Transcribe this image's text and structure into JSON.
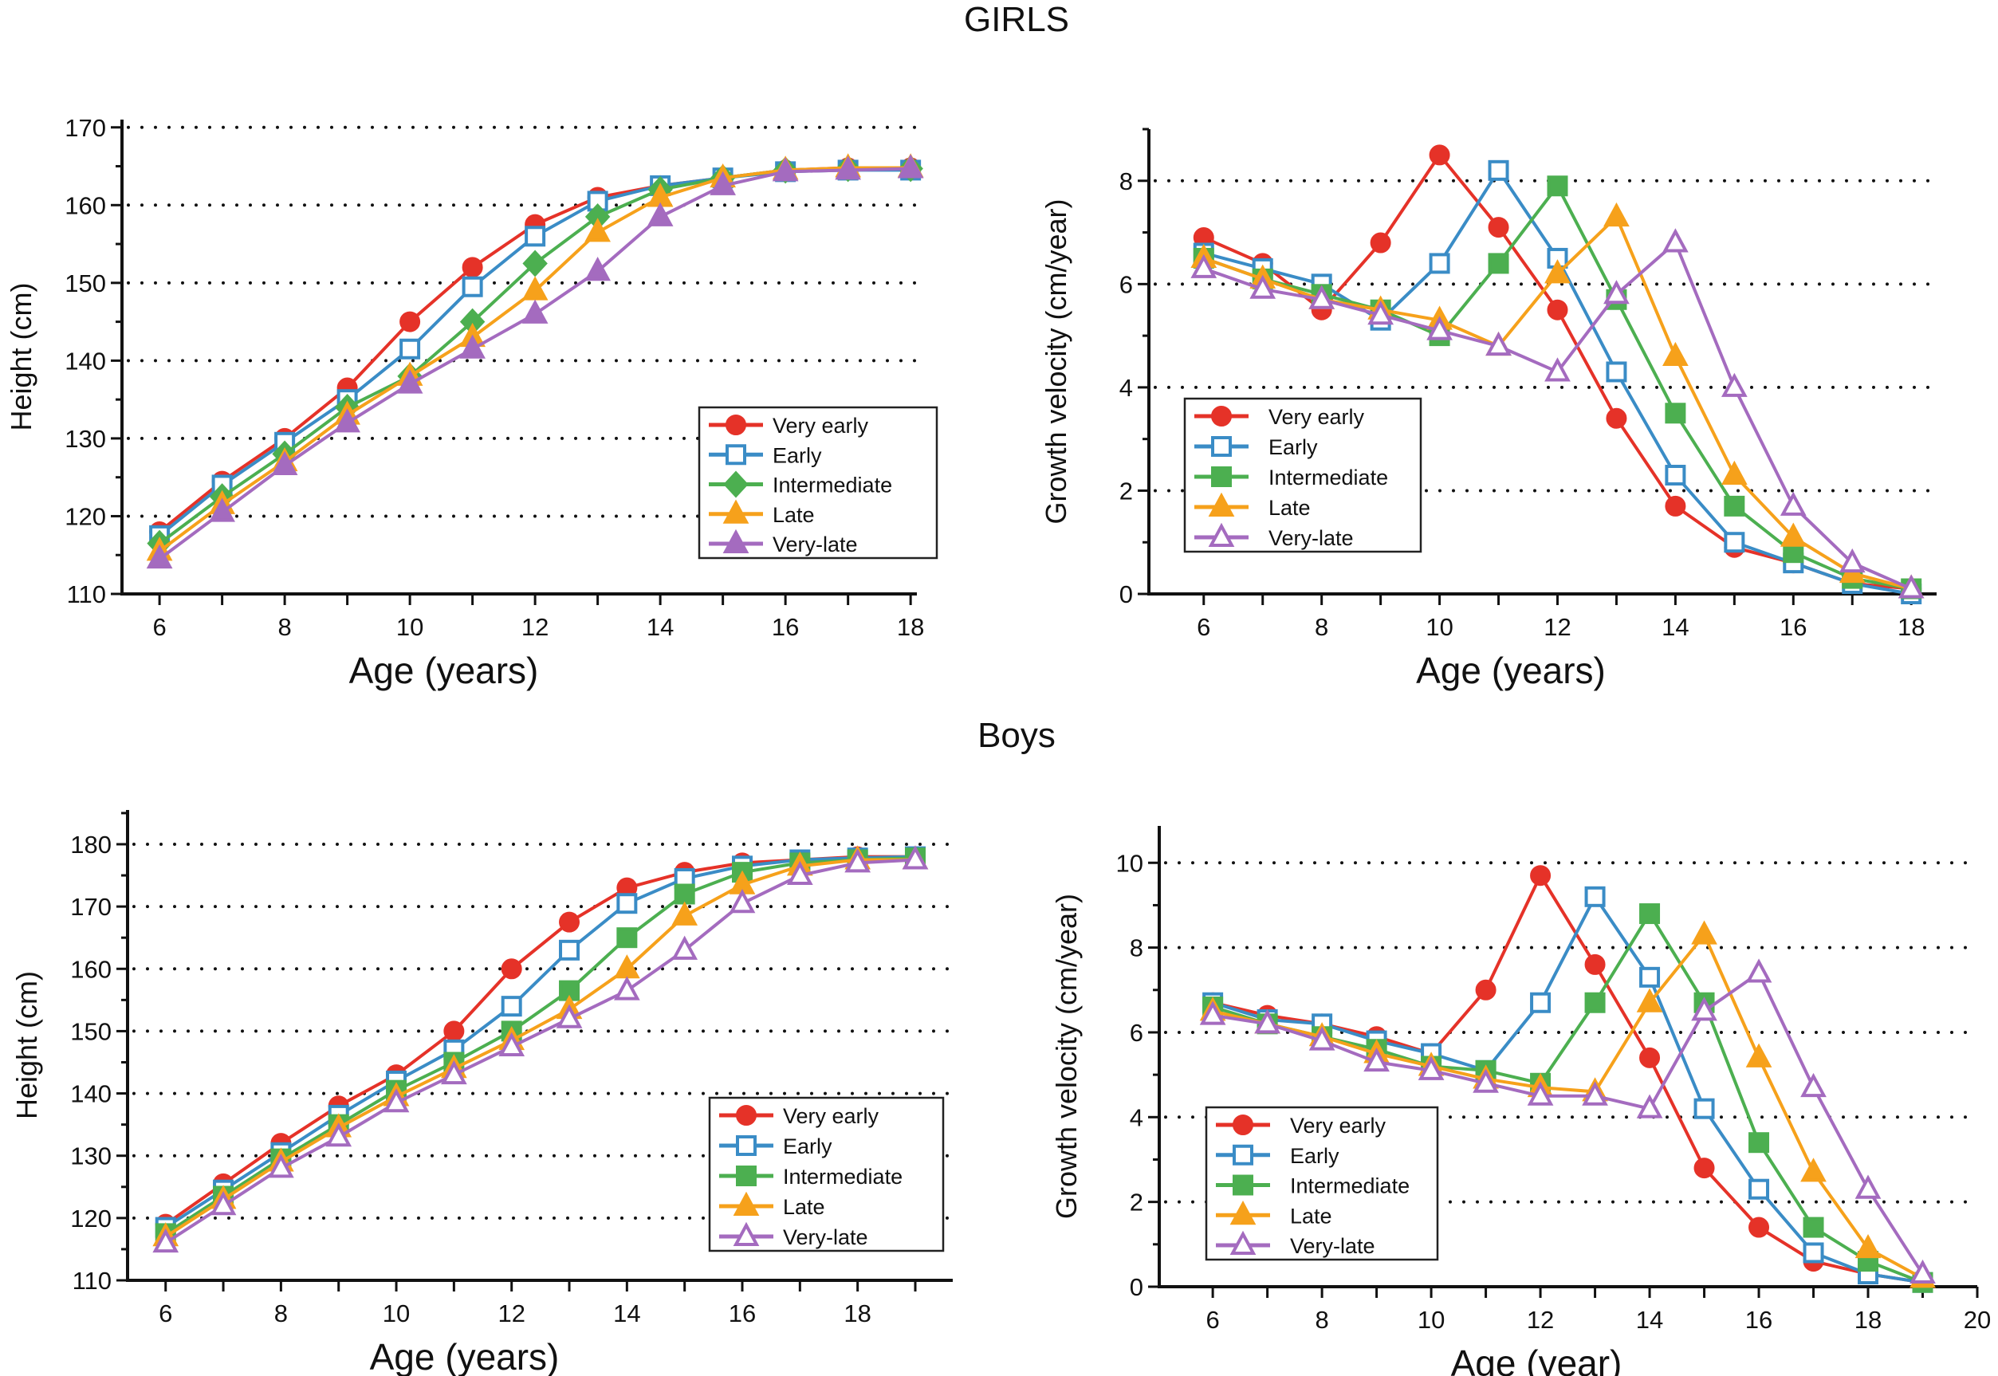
{
  "sections": {
    "girls": "GIRLS",
    "boys": "Boys"
  },
  "colors": {
    "Very early": "#e53228",
    "Early": "#3a8cc6",
    "Intermediate": "#4caf50",
    "Late": "#f6a11b",
    "Very-late": "#a46bbf"
  },
  "chart_data": [
    {
      "type": "line",
      "section": "GIRLS",
      "xlabel": "Age (years)",
      "ylabel": "Height (cm)",
      "xlim": [
        5.4,
        18.1
      ],
      "ylim": [
        110,
        171
      ],
      "xticks": [
        6,
        8,
        10,
        12,
        14,
        16,
        18
      ],
      "yticks": [
        110,
        120,
        130,
        140,
        150,
        160,
        170
      ],
      "grid": "dotted horizontal",
      "legend": "lower-right",
      "x": [
        6,
        7,
        8,
        9,
        10,
        11,
        12,
        13,
        14,
        15,
        16,
        17,
        18
      ],
      "series": [
        {
          "name": "Very early",
          "marker": "circle-filled",
          "values": [
            118,
            124.5,
            130,
            136.5,
            145,
            152,
            157.5,
            161,
            162.5,
            163.5,
            164.5,
            164.8,
            164.8
          ]
        },
        {
          "name": "Early",
          "marker": "square-open",
          "values": [
            117.5,
            124,
            129.5,
            135,
            141.5,
            149.5,
            156,
            160.5,
            162.5,
            163.5,
            164.3,
            164.5,
            164.5
          ]
        },
        {
          "name": "Intermediate",
          "marker": "diamond-filled",
          "values": [
            116.5,
            122.5,
            128,
            134,
            138,
            145,
            152.5,
            158.5,
            162,
            163.5,
            164.5,
            164.7,
            164.7
          ]
        },
        {
          "name": "Late",
          "marker": "triangle-filled",
          "values": [
            115.5,
            121.5,
            127,
            133,
            138,
            143,
            149,
            156.5,
            161,
            163.5,
            164.5,
            164.8,
            164.8
          ]
        },
        {
          "name": "Very-late",
          "marker": "triangle-filled",
          "values": [
            114.5,
            120.5,
            126.5,
            132,
            137,
            141.5,
            146,
            151.5,
            158.5,
            162.5,
            164.3,
            164.5,
            164.7
          ]
        }
      ]
    },
    {
      "type": "line",
      "section": "GIRLS",
      "xlabel": "Age (years)",
      "ylabel": "Growth velocity  (cm/year)",
      "xlim": [
        5.07,
        18.43
      ],
      "ylim": [
        0,
        9
      ],
      "xticks": [
        6,
        8,
        10,
        12,
        14,
        16,
        18
      ],
      "yticks": [
        0,
        2,
        4,
        6,
        8
      ],
      "grid": "dotted horizontal",
      "legend": "lower-left",
      "x": [
        6,
        7,
        8,
        9,
        10,
        11,
        12,
        13,
        14,
        15,
        16,
        17,
        18
      ],
      "series": [
        {
          "name": "Very early",
          "marker": "circle-filled",
          "values": [
            6.9,
            6.4,
            5.5,
            6.8,
            8.5,
            7.1,
            5.5,
            3.4,
            1.7,
            0.9,
            0.6,
            0.2,
            0.1
          ]
        },
        {
          "name": "Early",
          "marker": "square-open",
          "values": [
            6.6,
            6.3,
            6.0,
            5.3,
            6.4,
            8.2,
            6.5,
            4.3,
            2.3,
            1.0,
            0.6,
            0.2,
            0.0
          ]
        },
        {
          "name": "Intermediate",
          "marker": "square-filled",
          "values": [
            6.5,
            6.1,
            5.8,
            5.5,
            5.0,
            6.4,
            7.9,
            5.7,
            3.5,
            1.7,
            0.8,
            0.3,
            0.1
          ]
        },
        {
          "name": "Late",
          "marker": "triangle-filled",
          "values": [
            6.5,
            6.1,
            5.7,
            5.5,
            5.3,
            4.8,
            6.2,
            7.3,
            4.6,
            2.3,
            1.1,
            0.4,
            0.1
          ]
        },
        {
          "name": "Very-late",
          "marker": "triangle-open",
          "values": [
            6.3,
            5.9,
            5.7,
            5.4,
            5.1,
            4.8,
            4.3,
            5.8,
            6.8,
            4.0,
            1.7,
            0.6,
            0.1
          ]
        }
      ]
    },
    {
      "type": "line",
      "section": "Boys",
      "xlabel": "Age (years)",
      "ylabel": "Height (cm)",
      "xlim": [
        5.34,
        19.65
      ],
      "ylim": [
        110,
        185.5
      ],
      "xticks": [
        6,
        8,
        10,
        12,
        14,
        16,
        18
      ],
      "yticks": [
        110,
        120,
        130,
        140,
        150,
        160,
        170,
        180
      ],
      "grid": "dotted horizontal",
      "legend": "lower-right",
      "x": [
        6,
        7,
        8,
        9,
        10,
        11,
        12,
        13,
        14,
        15,
        16,
        17,
        18,
        19
      ],
      "series": [
        {
          "name": "Very early",
          "marker": "circle-filled",
          "values": [
            119,
            125.5,
            132,
            138,
            143,
            150,
            160,
            167.5,
            173,
            175.5,
            177,
            177.5,
            178,
            178
          ]
        },
        {
          "name": "Early",
          "marker": "square-open",
          "values": [
            118.5,
            124.5,
            130.5,
            136.5,
            142,
            147,
            154,
            163,
            170.5,
            174.5,
            176.5,
            177.5,
            177.8,
            178
          ]
        },
        {
          "name": "Intermediate",
          "marker": "square-filled",
          "values": [
            117.5,
            123.5,
            129.5,
            135,
            140.5,
            145,
            150,
            156.5,
            165,
            172,
            175.5,
            177,
            177.5,
            177.8
          ]
        },
        {
          "name": "Late",
          "marker": "triangle-filled",
          "values": [
            117,
            123,
            129,
            134.5,
            139.5,
            144,
            148.5,
            153.5,
            160,
            168.5,
            173.5,
            176.5,
            177.5,
            177.5
          ]
        },
        {
          "name": "Very-late",
          "marker": "triangle-open",
          "values": [
            116,
            122,
            128,
            133,
            138.5,
            143,
            147.5,
            152,
            156.5,
            163,
            170.5,
            175,
            177,
            177.5
          ]
        }
      ]
    },
    {
      "type": "line",
      "section": "Boys",
      "xlabel": "Age (year)",
      "ylabel": "Growth velocity  (cm/year)",
      "xlim": [
        5.02,
        20
      ],
      "ylim": [
        0,
        10.87
      ],
      "xticks": [
        6,
        8,
        10,
        12,
        14,
        16,
        18,
        20
      ],
      "yticks": [
        0,
        2,
        4,
        6,
        8,
        10
      ],
      "grid": "dotted horizontal",
      "legend": "lower-left",
      "x": [
        6,
        7,
        8,
        9,
        10,
        11,
        12,
        13,
        14,
        15,
        16,
        17,
        18,
        19
      ],
      "series": [
        {
          "name": "Very early",
          "marker": "circle-filled",
          "values": [
            6.7,
            6.4,
            6.2,
            5.9,
            5.5,
            7.0,
            9.7,
            7.6,
            5.4,
            2.8,
            1.4,
            0.6,
            0.3,
            0.1
          ]
        },
        {
          "name": "Early",
          "marker": "square-open",
          "values": [
            6.7,
            6.3,
            6.2,
            5.8,
            5.5,
            5.1,
            6.7,
            9.2,
            7.3,
            4.2,
            2.3,
            0.8,
            0.3,
            0.1
          ]
        },
        {
          "name": "Intermediate",
          "marker": "square-filled",
          "values": [
            6.6,
            6.2,
            5.9,
            5.6,
            5.2,
            5.1,
            4.8,
            6.7,
            8.8,
            6.7,
            3.4,
            1.4,
            0.6,
            0.1
          ]
        },
        {
          "name": "Late",
          "marker": "triangle-filled",
          "values": [
            6.5,
            6.2,
            5.9,
            5.5,
            5.2,
            4.9,
            4.7,
            4.6,
            6.7,
            8.3,
            5.4,
            2.7,
            0.9,
            0.2
          ]
        },
        {
          "name": "Very-late",
          "marker": "triangle-open",
          "values": [
            6.4,
            6.2,
            5.8,
            5.3,
            5.1,
            4.8,
            4.5,
            4.5,
            4.2,
            6.5,
            7.4,
            4.7,
            2.3,
            0.3
          ]
        }
      ]
    }
  ]
}
